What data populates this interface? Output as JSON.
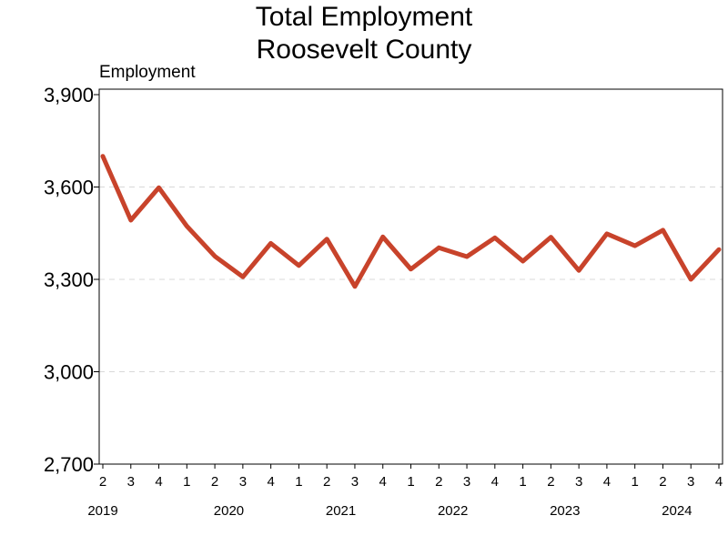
{
  "chart_data": {
    "type": "line",
    "title": "Total Employment",
    "subtitle": "Roosevelt County",
    "ylabel": "Employment",
    "ylim": [
      2700,
      3900
    ],
    "yticks": [
      2700,
      3000,
      3300,
      3600,
      3900
    ],
    "ytick_labels": [
      "2,700",
      "3,000",
      "3,300",
      "3,600",
      "3,900"
    ],
    "grid": true,
    "line_color": "#C8432B",
    "x": [
      "2019 Q2",
      "2019 Q3",
      "2019 Q4",
      "2020 Q1",
      "2020 Q2",
      "2020 Q3",
      "2020 Q4",
      "2021 Q1",
      "2021 Q2",
      "2021 Q3",
      "2021 Q4",
      "2022 Q1",
      "2022 Q2",
      "2022 Q3",
      "2022 Q4",
      "2023 Q1",
      "2023 Q2",
      "2023 Q3",
      "2023 Q4",
      "2024 Q1",
      "2024 Q2",
      "2024 Q3",
      "2024 Q4"
    ],
    "quarter_labels": [
      "2",
      "3",
      "4",
      "1",
      "2",
      "3",
      "4",
      "1",
      "2",
      "3",
      "4",
      "1",
      "2",
      "3",
      "4",
      "1",
      "2",
      "3",
      "4",
      "1",
      "2",
      "3",
      "4"
    ],
    "year_labels": [
      {
        "label": "2019",
        "index": 0
      },
      {
        "label": "2020",
        "index": 3
      },
      {
        "label": "2021",
        "index": 7
      },
      {
        "label": "2022",
        "index": 11
      },
      {
        "label": "2023",
        "index": 15
      },
      {
        "label": "2024",
        "index": 19
      }
    ],
    "values": [
      3700,
      3492,
      3598,
      3473,
      3375,
      3308,
      3417,
      3345,
      3431,
      3277,
      3438,
      3333,
      3403,
      3374,
      3435,
      3359,
      3437,
      3329,
      3448,
      3409,
      3460,
      3300,
      3397
    ]
  }
}
